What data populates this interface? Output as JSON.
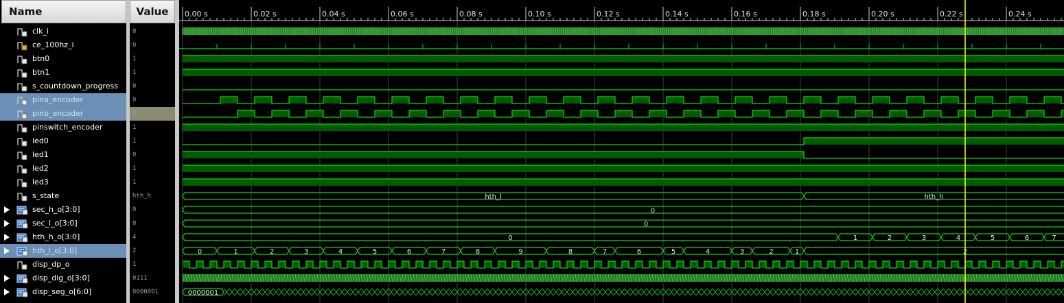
{
  "header": {
    "name_label": "Name",
    "value_label": "Value"
  },
  "time_axis": {
    "unit": "s",
    "ticks": [
      "0.00 s",
      "0.02 s",
      "0.04 s",
      "0.06 s",
      "0.08 s",
      "0.10 s",
      "0.12 s",
      "0.14 s",
      "0.16 s",
      "0.18 s",
      "0.20 s",
      "0.22 s",
      "0.24 s"
    ],
    "cursor_time": 0.228
  },
  "colors": {
    "wave": "#00e000",
    "wave_fill": "#005a00",
    "cursor": "#ffff00",
    "grid": "#404040",
    "selected_row": "#6b8fb5"
  },
  "signals": [
    {
      "name": "clk_i",
      "value": "0",
      "icon": "bit-signal-icon",
      "type": "clock"
    },
    {
      "name": "ce_100hz_i",
      "value": "0",
      "icon": "bit-signal-locked-icon",
      "type": "enable"
    },
    {
      "name": "btn0",
      "value": "1",
      "icon": "bit-signal-icon",
      "type": "high"
    },
    {
      "name": "btn1",
      "value": "1",
      "icon": "bit-signal-icon",
      "type": "high"
    },
    {
      "name": "s_countdown_progress",
      "value": "0",
      "icon": "bit-signal-icon",
      "type": "low"
    },
    {
      "name": "pina_encoder",
      "value": "0",
      "icon": "bit-signal-icon",
      "type": "encA",
      "selected": true
    },
    {
      "name": "pinb_encoder",
      "value": "0",
      "icon": "bit-signal-icon",
      "type": "encB",
      "selected": true,
      "value_selected": true
    },
    {
      "name": "pinswitch_encoder",
      "value": "1",
      "icon": "bit-signal-icon",
      "type": "high"
    },
    {
      "name": "led0",
      "value": "1",
      "icon": "bit-signal-icon",
      "type": "riseAt",
      "edge": 0.181
    },
    {
      "name": "led1",
      "value": "0",
      "icon": "bit-signal-icon",
      "type": "fallAt",
      "edge": 0.181
    },
    {
      "name": "led2",
      "value": "1",
      "icon": "bit-signal-icon",
      "type": "high"
    },
    {
      "name": "led3",
      "value": "1",
      "icon": "bit-signal-icon",
      "type": "high"
    },
    {
      "name": "s_state",
      "value": "hth_h",
      "icon": "bit-signal-icon",
      "type": "bus",
      "segments": [
        {
          "t0": 0.0,
          "t1": 0.181,
          "label": "hth_l"
        },
        {
          "t0": 0.181,
          "t1": 0.26,
          "label": "hth_h"
        }
      ]
    },
    {
      "name": "sec_h_o[3:0]",
      "value": "0",
      "icon": "bus-signal-icon",
      "type": "bus",
      "expandable": true,
      "segments": [
        {
          "t0": 0.0,
          "t1": 0.26,
          "label": "0",
          "label_at": 0.137
        }
      ]
    },
    {
      "name": "sec_l_o[3:0]",
      "value": "0",
      "icon": "bus-signal-icon",
      "type": "bus",
      "expandable": true,
      "segments": [
        {
          "t0": 0.0,
          "t1": 0.26,
          "label": "0",
          "label_at": 0.135
        }
      ]
    },
    {
      "name": "hth_h_o[3:0]",
      "value": "4",
      "icon": "bus-signal-icon",
      "type": "bus",
      "expandable": true,
      "segments": [
        {
          "t0": 0.0,
          "t1": 0.191,
          "label": "0"
        },
        {
          "t0": 0.191,
          "t1": 0.201,
          "label": "1"
        },
        {
          "t0": 0.201,
          "t1": 0.211,
          "label": "2"
        },
        {
          "t0": 0.211,
          "t1": 0.221,
          "label": "3"
        },
        {
          "t0": 0.221,
          "t1": 0.231,
          "label": "4"
        },
        {
          "t0": 0.231,
          "t1": 0.241,
          "label": "5"
        },
        {
          "t0": 0.241,
          "t1": 0.251,
          "label": "6"
        },
        {
          "t0": 0.251,
          "t1": 0.26,
          "label": "7"
        }
      ]
    },
    {
      "name": "hth_l_o[3:0]",
      "value": "2",
      "icon": "bus-signal-icon",
      "type": "bus",
      "expandable": true,
      "selected": true,
      "segments": [
        {
          "t0": 0.0,
          "t1": 0.01,
          "label": "0"
        },
        {
          "t0": 0.01,
          "t1": 0.021,
          "label": "1"
        },
        {
          "t0": 0.021,
          "t1": 0.031,
          "label": "2"
        },
        {
          "t0": 0.031,
          "t1": 0.041,
          "label": "3"
        },
        {
          "t0": 0.041,
          "t1": 0.051,
          "label": "4"
        },
        {
          "t0": 0.051,
          "t1": 0.061,
          "label": "5"
        },
        {
          "t0": 0.061,
          "t1": 0.071,
          "label": "6"
        },
        {
          "t0": 0.071,
          "t1": 0.081,
          "label": "7"
        },
        {
          "t0": 0.081,
          "t1": 0.091,
          "label": "8"
        },
        {
          "t0": 0.091,
          "t1": 0.106,
          "label": "9"
        },
        {
          "t0": 0.106,
          "t1": 0.12,
          "label": "8"
        },
        {
          "t0": 0.12,
          "t1": 0.126,
          "label": "7"
        },
        {
          "t0": 0.126,
          "t1": 0.14,
          "label": "6"
        },
        {
          "t0": 0.14,
          "t1": 0.146,
          "label": "5"
        },
        {
          "t0": 0.146,
          "t1": 0.16,
          "label": "4"
        },
        {
          "t0": 0.16,
          "t1": 0.166,
          "label": "3"
        },
        {
          "t0": 0.166,
          "t1": 0.177,
          "label": "2"
        },
        {
          "t0": 0.177,
          "t1": 0.181,
          "label": "1"
        },
        {
          "t0": 0.181,
          "t1": 0.26,
          "label": "2",
          "label_at": 0.228
        }
      ]
    },
    {
      "name": "disp_dp_o",
      "value": "1",
      "icon": "bit-signal-icon",
      "type": "fastclock"
    },
    {
      "name": "disp_dig_o[3:0]",
      "value": "0111",
      "icon": "bus-signal-icon",
      "type": "dense",
      "expandable": true
    },
    {
      "name": "disp_seg_o[6:0]",
      "value": "0000001",
      "icon": "bus-signal-icon",
      "type": "densebus",
      "expandable": true,
      "first_label": "0000001"
    }
  ]
}
